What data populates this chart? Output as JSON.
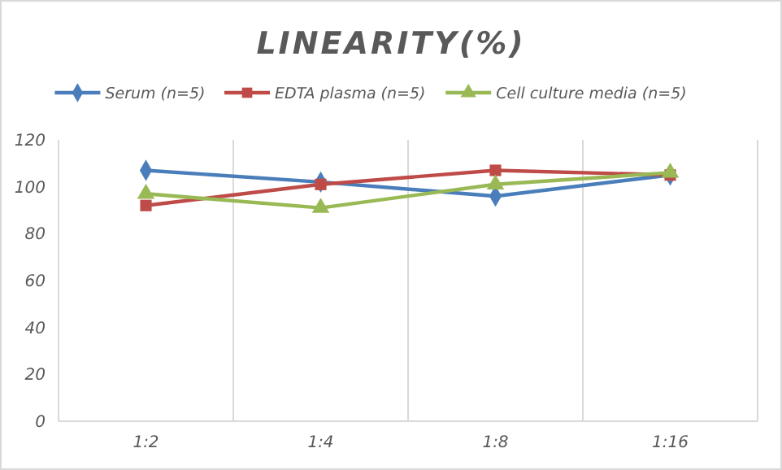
{
  "chart_data": {
    "type": "line",
    "title": "LINEARITY(%)",
    "categories": [
      "1:2",
      "1:4",
      "1:8",
      "1:16"
    ],
    "series": [
      {
        "name": "Serum (n=5)",
        "color": "#4a7ebb",
        "marker": "diamond",
        "values": [
          107,
          102,
          96,
          105
        ]
      },
      {
        "name": "EDTA plasma (n=5)",
        "color": "#be4b48",
        "marker": "square",
        "values": [
          92,
          101,
          107,
          105
        ]
      },
      {
        "name": "Cell culture media (n=5)",
        "color": "#98b954",
        "marker": "triangle",
        "values": [
          97,
          91,
          101,
          106
        ]
      }
    ],
    "ylim": [
      0,
      120
    ],
    "yticks": [
      0,
      20,
      40,
      60,
      80,
      100,
      120
    ],
    "grid": "x",
    "legend": "top"
  }
}
